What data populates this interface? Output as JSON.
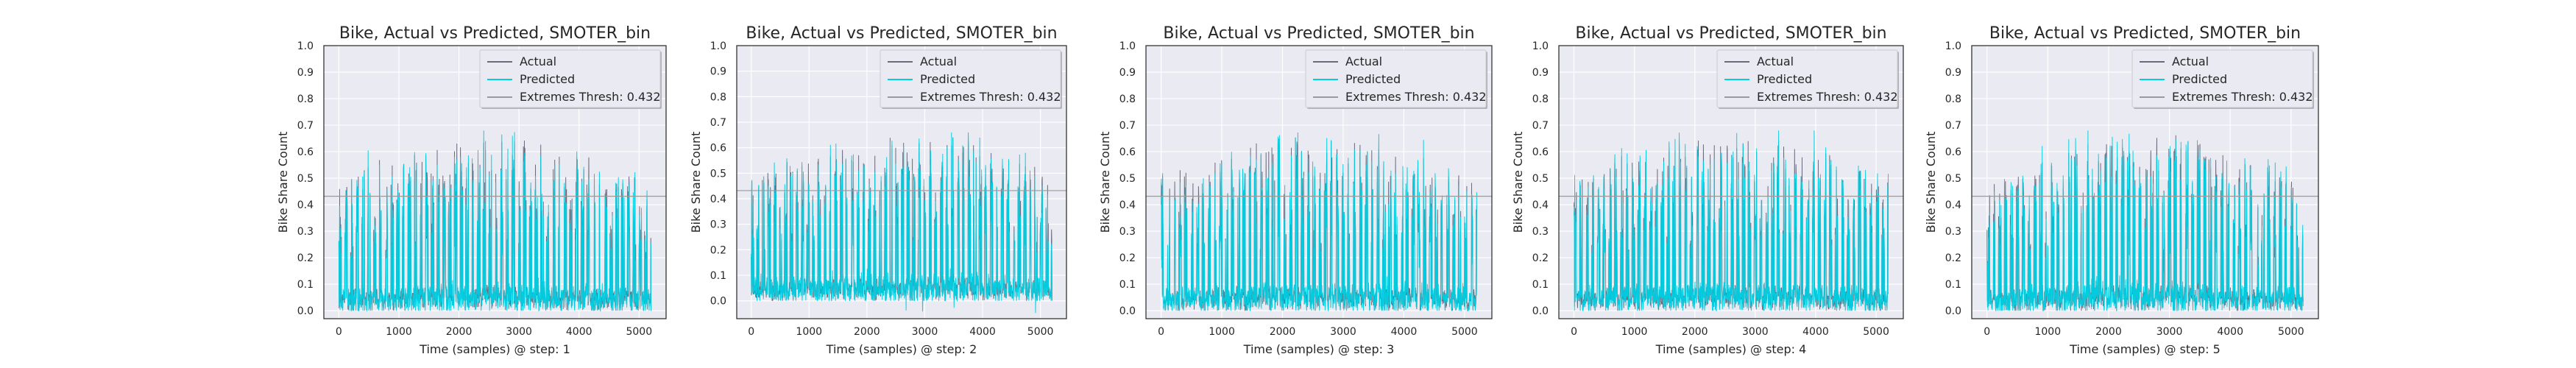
{
  "colors": {
    "actual": "#6b6b80",
    "predicted": "#00cfe0",
    "threshold": "#9a9a9a",
    "plot_bg": "#eaeaf2",
    "grid": "#ffffff"
  },
  "chart_data": [
    {
      "type": "line",
      "title": "Bike, Actual vs Predicted, SMOTER_bin",
      "xlabel": "Time (samples) @ step: 1",
      "ylabel": "Bike Share Count",
      "xlim": [
        -250,
        5450
      ],
      "ylim": [
        -0.03,
        1.0
      ],
      "xticks": [
        0,
        1000,
        2000,
        3000,
        4000,
        5000
      ],
      "yticks": [
        0.0,
        0.1,
        0.2,
        0.3,
        0.4,
        0.5,
        0.6,
        0.7,
        0.8,
        0.9,
        1.0
      ],
      "grid": true,
      "legend_position": "upper-right",
      "series": [
        {
          "name": "Actual",
          "sample_count": 5200,
          "min": 0.0,
          "max": 0.69
        },
        {
          "name": "Predicted",
          "sample_count": 5200,
          "min": 0.0,
          "max": 0.68
        },
        {
          "name": "Extremes Thresh: 0.432",
          "value": 0.432
        }
      ]
    },
    {
      "type": "line",
      "title": "Bike, Actual vs Predicted, SMOTER_bin",
      "xlabel": "Time (samples) @ step: 2",
      "ylabel": "Bike Share Count",
      "xlim": [
        -250,
        5450
      ],
      "ylim": [
        -0.07,
        1.0
      ],
      "xticks": [
        0,
        1000,
        2000,
        3000,
        4000,
        5000
      ],
      "yticks": [
        0.0,
        0.1,
        0.2,
        0.3,
        0.4,
        0.5,
        0.6,
        0.7,
        0.8,
        0.9,
        1.0
      ],
      "grid": true,
      "legend_position": "upper-right",
      "series": [
        {
          "name": "Actual",
          "sample_count": 5200,
          "min": 0.0,
          "max": 0.69
        },
        {
          "name": "Predicted",
          "sample_count": 5200,
          "min": -0.05,
          "max": 0.66
        },
        {
          "name": "Extremes Thresh: 0.432",
          "value": 0.432
        }
      ]
    },
    {
      "type": "line",
      "title": "Bike, Actual vs Predicted, SMOTER_bin",
      "xlabel": "Time (samples) @ step: 3",
      "ylabel": "Bike Share Count",
      "xlim": [
        -250,
        5450
      ],
      "ylim": [
        -0.03,
        1.0
      ],
      "xticks": [
        0,
        1000,
        2000,
        3000,
        4000,
        5000
      ],
      "yticks": [
        0.0,
        0.1,
        0.2,
        0.3,
        0.4,
        0.5,
        0.6,
        0.7,
        0.8,
        0.9,
        1.0
      ],
      "grid": true,
      "legend_position": "upper-right",
      "series": [
        {
          "name": "Actual",
          "sample_count": 5200,
          "min": 0.0,
          "max": 0.69
        },
        {
          "name": "Predicted",
          "sample_count": 5200,
          "min": 0.0,
          "max": 0.7
        },
        {
          "name": "Extremes Thresh: 0.432",
          "value": 0.432
        }
      ]
    },
    {
      "type": "line",
      "title": "Bike, Actual vs Predicted, SMOTER_bin",
      "xlabel": "Time (samples) @ step: 4",
      "ylabel": "Bike Share Count",
      "xlim": [
        -250,
        5450
      ],
      "ylim": [
        -0.03,
        1.0
      ],
      "xticks": [
        0,
        1000,
        2000,
        3000,
        4000,
        5000
      ],
      "yticks": [
        0.0,
        0.1,
        0.2,
        0.3,
        0.4,
        0.5,
        0.6,
        0.7,
        0.8,
        0.9,
        1.0
      ],
      "grid": true,
      "legend_position": "upper-right",
      "series": [
        {
          "name": "Actual",
          "sample_count": 5200,
          "min": 0.0,
          "max": 0.69
        },
        {
          "name": "Predicted",
          "sample_count": 5200,
          "min": 0.0,
          "max": 0.68
        },
        {
          "name": "Extremes Thresh: 0.432",
          "value": 0.432
        }
      ]
    },
    {
      "type": "line",
      "title": "Bike, Actual vs Predicted, SMOTER_bin",
      "xlabel": "Time (samples) @ step: 5",
      "ylabel": "Bike Share Count",
      "xlim": [
        -250,
        5450
      ],
      "ylim": [
        -0.03,
        1.0
      ],
      "xticks": [
        0,
        1000,
        2000,
        3000,
        4000,
        5000
      ],
      "yticks": [
        0.0,
        0.1,
        0.2,
        0.3,
        0.4,
        0.5,
        0.6,
        0.7,
        0.8,
        0.9,
        1.0
      ],
      "grid": true,
      "legend_position": "upper-right",
      "series": [
        {
          "name": "Actual",
          "sample_count": 5200,
          "min": 0.0,
          "max": 0.69
        },
        {
          "name": "Predicted",
          "sample_count": 5200,
          "min": 0.0,
          "max": 0.68
        },
        {
          "name": "Extremes Thresh: 0.432",
          "value": 0.432
        }
      ]
    }
  ]
}
